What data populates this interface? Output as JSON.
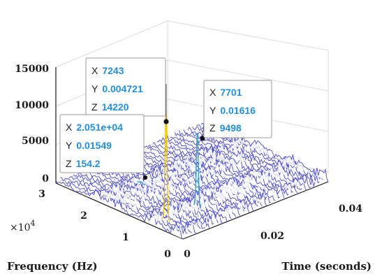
{
  "chart_data": {
    "type": "waterfall-3d",
    "z_ticks": [
      "0",
      "5000",
      "10000",
      "15000"
    ],
    "freq_ticks": [
      "0",
      "1",
      "2",
      "3"
    ],
    "freq_multiplier_base": "×10",
    "freq_multiplier_exp": "4",
    "time_ticks": [
      "0",
      "0.02",
      "0.04"
    ],
    "xlabel": "Frequency (Hz)",
    "ylabel": "Time (seconds)",
    "zlim": [
      0,
      15000
    ],
    "freq_lim": [
      0,
      30000
    ],
    "time_lim": [
      0,
      0.05
    ],
    "line_color": "#4a4ad8",
    "highlight_color": "#e8c000",
    "peak_color": "#30a0c8",
    "datatips": [
      {
        "x_key": "X",
        "x_val": "7243",
        "y_key": "Y",
        "y_val": "0.004721",
        "z_key": "Z",
        "z_val": "14220"
      },
      {
        "x_key": "X",
        "x_val": "7701",
        "y_key": "Y",
        "y_val": "0.01616",
        "z_key": "Z",
        "z_val": "9498"
      },
      {
        "x_key": "X",
        "x_val": "2.051e+04",
        "y_key": "Y",
        "y_val": "0.01549",
        "z_key": "Z",
        "z_val": "154.2"
      }
    ],
    "peaks": [
      {
        "freq": 7243,
        "time": 0.004721,
        "z": 14220
      },
      {
        "freq": 7701,
        "time": 0.01616,
        "z": 9498
      },
      {
        "freq": 20510,
        "time": 0.01549,
        "z": 154.2
      }
    ]
  }
}
